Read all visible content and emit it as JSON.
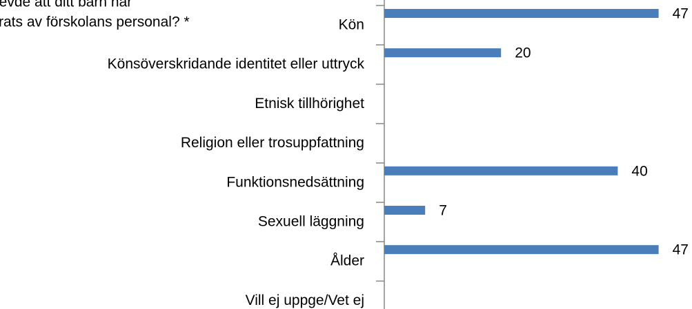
{
  "chart_data": {
    "type": "hbar",
    "title_lines": [
      "levde att ditt barn har",
      "rats av förskolans personal? *"
    ],
    "categories": [
      "Kön",
      "Könsöverskridande identitet eller uttryck",
      "Etnisk tillhörighet",
      "Religion eller trosuppfattning",
      "Funktionsnedsättning",
      "Sexuell läggning",
      "Ålder",
      "Vill ej uppge/Vet ej"
    ],
    "values": [
      47,
      20,
      null,
      null,
      40,
      7,
      47,
      null
    ],
    "color": "#4a7ebb",
    "xlim": [
      0,
      50
    ]
  }
}
